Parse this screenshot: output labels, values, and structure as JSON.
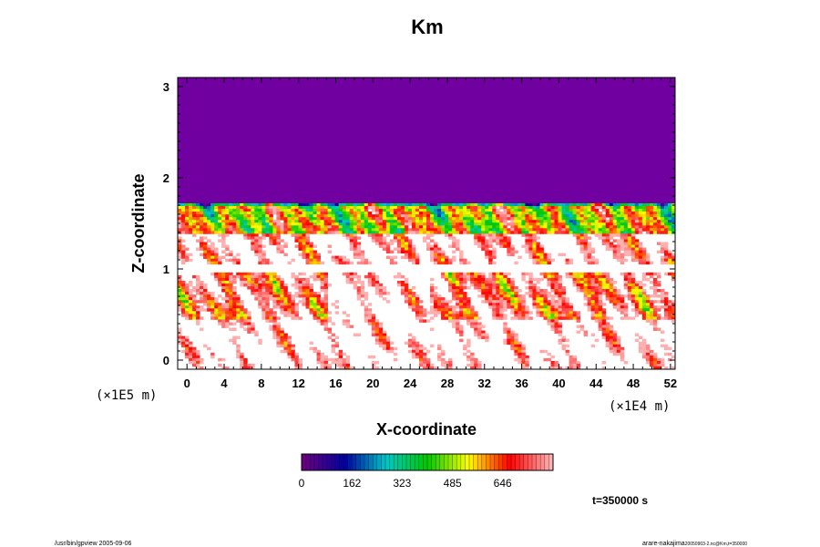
{
  "chart_data": {
    "type": "heatmap",
    "title": "Km",
    "xlabel": "X-coordinate",
    "ylabel": "Z-coordinate",
    "x_ticks": [
      0,
      4,
      8,
      12,
      16,
      20,
      24,
      28,
      32,
      36,
      40,
      44,
      48,
      52
    ],
    "y_ticks": [
      0,
      1,
      2,
      3
    ],
    "xlim": [
      -1,
      52.5
    ],
    "ylim": [
      -0.1,
      3.1
    ],
    "x_scale_label": "(×1E4 m)",
    "y_scale_label": "(×1E5 m)",
    "colorbar": {
      "ticks": [
        0,
        162,
        323,
        485,
        646
      ],
      "range": [
        0,
        808
      ],
      "colors": [
        "#6a0080",
        "#0000a0",
        "#00c8c8",
        "#00c800",
        "#ffff00",
        "#ff0000",
        "#ffb0b0"
      ]
    },
    "uniform_top_region": {
      "z_from": 1.72,
      "z_to": 3.1,
      "value": 0,
      "color": "#7000a0"
    },
    "time_label": "t=350000 s"
  },
  "footer": {
    "left": "/usr/bin/gpview 2005-09-06",
    "right": "arare-nakajima",
    "right_sub": "20050903-2.nc@Km,t=350000"
  }
}
